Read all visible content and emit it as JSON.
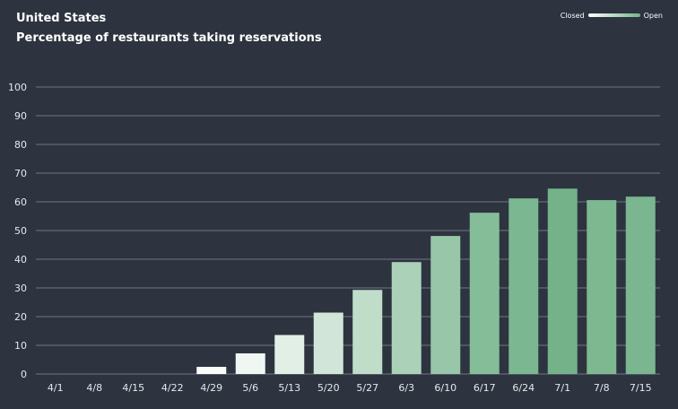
{
  "chart_data": {
    "type": "bar",
    "title": "United States",
    "subtitle": "Percentage of restaurants taking reservations",
    "categories": [
      "4/1",
      "4/8",
      "4/15",
      "4/22",
      "4/29",
      "5/6",
      "5/13",
      "5/20",
      "5/27",
      "6/3",
      "6/10",
      "6/17",
      "6/24",
      "7/1",
      "7/8",
      "7/15"
    ],
    "values": [
      0,
      0,
      0,
      0,
      2.5,
      7.2,
      13.6,
      21.4,
      29.3,
      39.0,
      48.1,
      56.2,
      61.2,
      64.6,
      60.6,
      61.8
    ],
    "ylim": [
      0,
      100
    ],
    "yticks": [
      0,
      10,
      20,
      30,
      40,
      50,
      60,
      70,
      80,
      90,
      100
    ],
    "xlabel": "",
    "ylabel": "",
    "grid": true,
    "legend": {
      "low_label": "Closed",
      "high_label": "Open",
      "placement": "top-right"
    },
    "colors": {
      "background": "#2d333f",
      "gridline": "#5a616b",
      "low": "#ffffff",
      "high": "#74b38a",
      "tick_text": "#e6e9ed"
    }
  }
}
